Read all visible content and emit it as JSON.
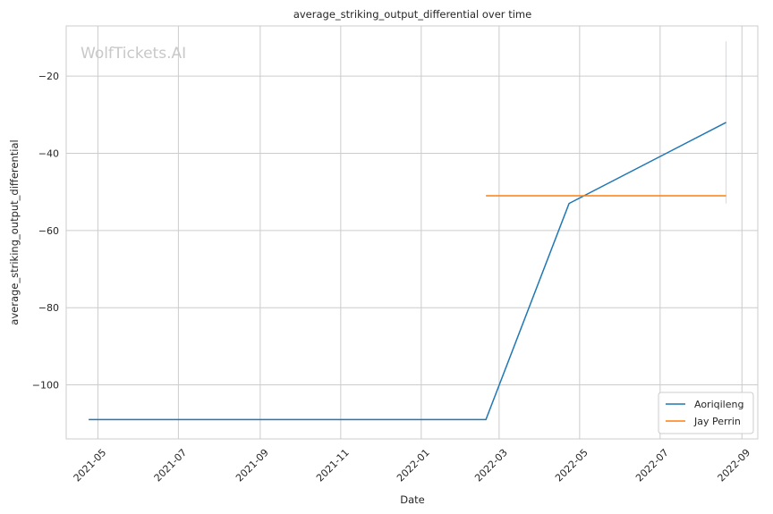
{
  "chart_data": {
    "type": "line",
    "title": "average_striking_output_differential over time",
    "xlabel": "Date",
    "ylabel": "average_striking_output_differential",
    "watermark": "WolfTickets.AI",
    "x_ticks": [
      "2021-05",
      "2021-07",
      "2021-09",
      "2021-11",
      "2022-01",
      "2022-03",
      "2022-05",
      "2022-07",
      "2022-09"
    ],
    "y_ticks": [
      -20,
      -40,
      -60,
      -80,
      -100
    ],
    "y_tick_labels": [
      "−20",
      "−40",
      "−60",
      "−80",
      "−100"
    ],
    "xlim": [
      "2021-04-07",
      "2022-09-13"
    ],
    "ylim": [
      -114,
      -7
    ],
    "grid": true,
    "legend_position": "lower-right",
    "series": [
      {
        "name": "Aoriqileng",
        "color": "#1f77b4",
        "points": [
          {
            "x": "2021-04-24",
            "y": -109
          },
          {
            "x": "2022-02-19",
            "y": -109
          },
          {
            "x": "2022-04-23",
            "y": -53
          },
          {
            "x": "2022-08-20",
            "y": -32
          }
        ],
        "range_band": {
          "x": "2022-08-20",
          "y_min": -53,
          "y_max": -11
        }
      },
      {
        "name": "Jay Perrin",
        "color": "#ff7f0e",
        "points": [
          {
            "x": "2022-02-19",
            "y": -51
          },
          {
            "x": "2022-08-20",
            "y": -51
          }
        ]
      }
    ]
  }
}
